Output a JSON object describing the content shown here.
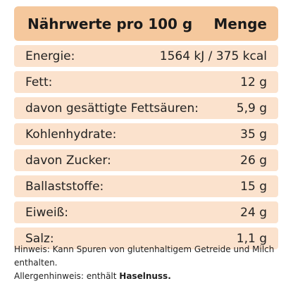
{
  "header": {
    "label": "Nährwerte pro 100 g",
    "amount_label": "Menge"
  },
  "rows": [
    {
      "label": "Energie:",
      "value": "1564 kJ / 375 kcal"
    },
    {
      "label": "Fett:",
      "value": "12 g"
    },
    {
      "label": "davon gesättigte Fettsäuren:",
      "value": "5,9 g"
    },
    {
      "label": "Kohlenhydrate:",
      "value": "35 g"
    },
    {
      "label": "davon Zucker:",
      "value": "26 g"
    },
    {
      "label": "Ballaststoffe:",
      "value": "15 g"
    },
    {
      "label": "Eiweiß:",
      "value": "24 g"
    },
    {
      "label": "Salz:",
      "value": "1,1 g"
    }
  ],
  "notes": {
    "hint": "Hinweis: Kann Spuren von glutenhaltigem Getreide und Milch enthalten.",
    "allergen_prefix": "Allergenhinweis: enthält ",
    "allergen_item": "Haselnuss."
  },
  "colors": {
    "header_bg": "#f5c89d",
    "row_bg": "#fbe2cd"
  }
}
